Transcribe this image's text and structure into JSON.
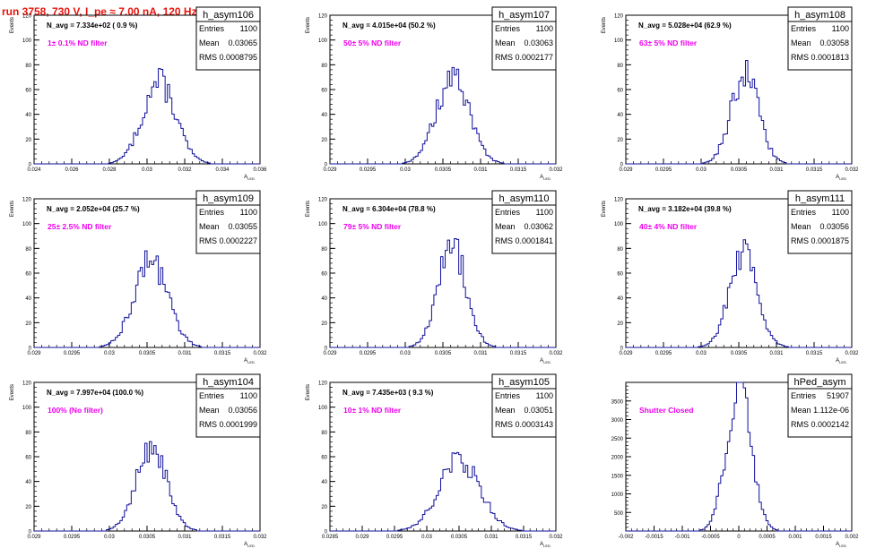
{
  "page_title": "run 3758,   730 V, I_pe ≈ 7.00 nA, 120 Hz",
  "colors": {
    "title": "#e8140c",
    "note": "#ee00ee",
    "histogram": "#10109c",
    "frame": "#000000",
    "bottom_axis_hist": "#10109c"
  },
  "chart_data": [
    {
      "type": "histogram",
      "title": "h_asym106",
      "ylabel": "Events",
      "xlabel": "A_{LED}",
      "xlim": [
        0.024,
        0.036
      ],
      "ylim": [
        0,
        120
      ],
      "xticks": [
        0.024,
        0.026,
        0.028,
        0.03,
        0.032,
        0.034,
        0.036
      ],
      "xtick_labels": [
        "0.024",
        "0.026",
        "0.028",
        "0.03",
        "0.032",
        "0.034",
        "0.036"
      ],
      "yticks": [
        0,
        20,
        40,
        60,
        80,
        100,
        120
      ],
      "navg": "N_avg = 7.334e+02 ( 0.9 %)",
      "note": "1± 0.1% ND filter",
      "stats": {
        "entries": "1100",
        "mean": "0.03065",
        "rms": "0.0008795"
      },
      "mean": 0.03065,
      "rms": 0.0008795,
      "peak": 66,
      "nbins": 100
    },
    {
      "type": "histogram",
      "title": "h_asym107",
      "ylabel": "Events",
      "xlabel": "A_{LED}",
      "xlim": [
        0.029,
        0.032
      ],
      "ylim": [
        0,
        120
      ],
      "xticks": [
        0.029,
        0.0295,
        0.03,
        0.0305,
        0.031,
        0.0315,
        0.032
      ],
      "xtick_labels": [
        "0.029",
        "0.0295",
        "0.03",
        "0.0305",
        "0.031",
        "0.0315",
        "0.032"
      ],
      "yticks": [
        0,
        20,
        40,
        60,
        80,
        100,
        120
      ],
      "navg": "N_avg = 4.015e+04 (50.2 %)",
      "note": "50± 5% ND filter",
      "stats": {
        "entries": "1100",
        "mean": "0.03063",
        "rms": "0.0002177"
      },
      "mean": 0.03063,
      "rms": 0.0002177,
      "peak": 69,
      "nbins": 100
    },
    {
      "type": "histogram",
      "title": "h_asym108",
      "ylabel": "Events",
      "xlabel": "A_{LED}",
      "xlim": [
        0.029,
        0.032
      ],
      "ylim": [
        0,
        120
      ],
      "xticks": [
        0.029,
        0.0295,
        0.03,
        0.0305,
        0.031,
        0.0315,
        0.032
      ],
      "xtick_labels": [
        "0.029",
        "0.0295",
        "0.03",
        "0.0305",
        "0.031",
        "0.0315",
        "0.032"
      ],
      "yticks": [
        0,
        20,
        40,
        60,
        80,
        100,
        120
      ],
      "navg": "N_avg = 5.028e+04 (62.9 %)",
      "note": "63± 5% ND filter",
      "stats": {
        "entries": "1100",
        "mean": "0.03058",
        "rms": "0.0001813"
      },
      "mean": 0.03058,
      "rms": 0.0001813,
      "peak": 73,
      "nbins": 100
    },
    {
      "type": "histogram",
      "title": "h_asym109",
      "ylabel": "Events",
      "xlabel": "A_{LED}",
      "xlim": [
        0.029,
        0.032
      ],
      "ylim": [
        0,
        120
      ],
      "xticks": [
        0.029,
        0.0295,
        0.03,
        0.0305,
        0.031,
        0.0315,
        0.032
      ],
      "xtick_labels": [
        "0.029",
        "0.0295",
        "0.03",
        "0.0305",
        "0.031",
        "0.0315",
        "0.032"
      ],
      "yticks": [
        0,
        20,
        40,
        60,
        80,
        100,
        120
      ],
      "navg": "N_avg = 2.052e+04 (25.7 %)",
      "note": "25± 2.5% ND filter",
      "stats": {
        "entries": "1100",
        "mean": "0.03055",
        "rms": "0.0002227"
      },
      "mean": 0.03055,
      "rms": 0.0002227,
      "peak": 70,
      "nbins": 100
    },
    {
      "type": "histogram",
      "title": "h_asym110",
      "ylabel": "Events",
      "xlabel": "A_{LED}",
      "xlim": [
        0.029,
        0.032
      ],
      "ylim": [
        0,
        120
      ],
      "xticks": [
        0.029,
        0.0295,
        0.03,
        0.0305,
        0.031,
        0.0315,
        0.032
      ],
      "xtick_labels": [
        "0.029",
        "0.0295",
        "0.03",
        "0.0305",
        "0.031",
        "0.0315",
        "0.032"
      ],
      "yticks": [
        0,
        20,
        40,
        60,
        80,
        100,
        120
      ],
      "navg": "N_avg = 6.304e+04 (78.8 %)",
      "note": "79± 5% ND filter",
      "stats": {
        "entries": "1100",
        "mean": "0.03062",
        "rms": "0.0001841"
      },
      "mean": 0.03062,
      "rms": 0.0001841,
      "peak": 84,
      "nbins": 100
    },
    {
      "type": "histogram",
      "title": "h_asym111",
      "ylabel": "Events",
      "xlabel": "A_{LED}",
      "xlim": [
        0.029,
        0.032
      ],
      "ylim": [
        0,
        120
      ],
      "xticks": [
        0.029,
        0.0295,
        0.03,
        0.0305,
        0.031,
        0.0315,
        0.032
      ],
      "xtick_labels": [
        "0.029",
        "0.0295",
        "0.03",
        "0.0305",
        "0.031",
        "0.0315",
        "0.032"
      ],
      "yticks": [
        0,
        20,
        40,
        60,
        80,
        100,
        120
      ],
      "navg": "N_avg = 3.182e+04 (39.8 %)",
      "note": "40± 4% ND filter",
      "stats": {
        "entries": "1100",
        "mean": "0.03056",
        "rms": "0.0001875"
      },
      "mean": 0.03056,
      "rms": 0.0001875,
      "peak": 75,
      "nbins": 100
    },
    {
      "type": "histogram",
      "title": "h_asym104",
      "ylabel": "Events",
      "xlabel": "A_{LED}",
      "xlim": [
        0.029,
        0.032
      ],
      "ylim": [
        0,
        120
      ],
      "xticks": [
        0.029,
        0.0295,
        0.03,
        0.0305,
        0.031,
        0.0315,
        0.032
      ],
      "xtick_labels": [
        "0.029",
        "0.0295",
        "0.03",
        "0.0305",
        "0.031",
        "0.0315",
        "0.032"
      ],
      "yticks": [
        0,
        20,
        40,
        60,
        80,
        100,
        120
      ],
      "navg": "N_avg = 7.997e+04 (100.0 %)",
      "note": "100% (No filter)",
      "stats": {
        "entries": "1100",
        "mean": "0.03056",
        "rms": "0.0001999"
      },
      "mean": 0.03056,
      "rms": 0.0001999,
      "peak": 69,
      "nbins": 100
    },
    {
      "type": "histogram",
      "title": "h_asym105",
      "ylabel": "Events",
      "xlabel": "A_{LED}",
      "xlim": [
        0.0285,
        0.032
      ],
      "ylim": [
        0,
        120
      ],
      "xticks": [
        0.0285,
        0.029,
        0.0295,
        0.03,
        0.0305,
        0.031,
        0.0315,
        0.032
      ],
      "xtick_labels": [
        "0.0285",
        "0.029",
        "0.0295",
        "0.03",
        "0.0305",
        "0.031",
        "0.0315",
        "0.032"
      ],
      "yticks": [
        0,
        20,
        40,
        60,
        80,
        100,
        120
      ],
      "navg": "N_avg = 7.435e+03 ( 9.3 %)",
      "note": "10± 1% ND filter",
      "stats": {
        "entries": "1100",
        "mean": "0.03051",
        "rms": "0.0003143"
      },
      "mean": 0.03051,
      "rms": 0.0003143,
      "peak": 58,
      "nbins": 100
    },
    {
      "type": "histogram",
      "title": "hPed_asym",
      "ylabel": "",
      "xlabel": "A_{LED}",
      "xlim": [
        -0.002,
        0.002
      ],
      "ylim": [
        0,
        4000
      ],
      "xticks": [
        -0.002,
        -0.0015,
        -0.001,
        -0.0005,
        0,
        0.0005,
        0.001,
        0.0015,
        0.002
      ],
      "xtick_labels": [
        "-0.002",
        "-0.0015",
        "-0.001",
        "-0.0005",
        "0",
        "0.0005",
        "0.001",
        "0.0015",
        "0.002"
      ],
      "yticks": [
        500,
        1000,
        1500,
        2000,
        2500,
        3000,
        3500
      ],
      "navg": "",
      "note": "Shutter Closed",
      "stats": {
        "entries": "51907",
        "mean": "1.112e-06",
        "rms": "0.0002142"
      },
      "mean": 1.112e-06,
      "rms": 0.0002142,
      "peak": 3880,
      "nbins": 100
    }
  ]
}
